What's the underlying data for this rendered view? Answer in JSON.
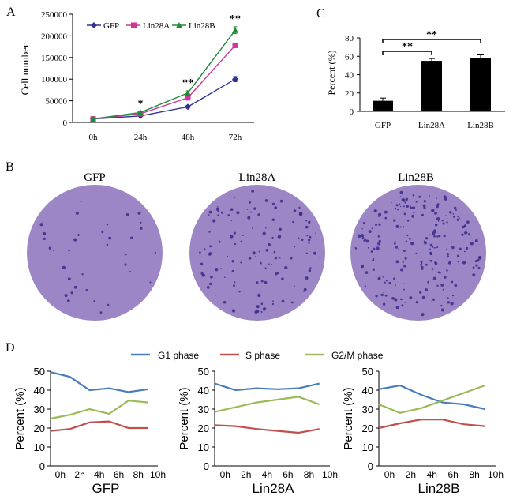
{
  "figure": {
    "panels": {
      "a": "A",
      "b": "B",
      "c": "C",
      "d": "D"
    },
    "colors": {
      "gfp": "#2e3192",
      "lin28a": "#d1359b",
      "lin28b": "#1e8a3a",
      "g1": "#4a7ebb",
      "s": "#c0504d",
      "g2m": "#9bbb59",
      "bar": "#000000",
      "plate": "#9c86c6",
      "plate_dot": "#3b2a8a"
    }
  },
  "chart_data": [
    {
      "id": "panelA",
      "type": "line",
      "title": "",
      "xlabel": "",
      "ylabel": "Cell number",
      "categories": [
        "0h",
        "24h",
        "48h",
        "72h"
      ],
      "ylim": [
        0,
        250000
      ],
      "yticks": [
        "0",
        "50000",
        "100000",
        "150000",
        "200000",
        "250000"
      ],
      "series": [
        {
          "name": "GFP",
          "values": [
            8000,
            15000,
            36000,
            100000
          ],
          "errors": [
            1000,
            2000,
            3000,
            6000
          ]
        },
        {
          "name": "Lin28A",
          "values": [
            8000,
            20000,
            57000,
            178000
          ],
          "errors": [
            1000,
            2000,
            4000,
            5000
          ]
        },
        {
          "name": "Lin28B",
          "values": [
            8000,
            23000,
            68000,
            213000
          ],
          "errors": [
            1000,
            2000,
            5000,
            8000
          ]
        }
      ],
      "annotations": [
        {
          "category": "24h",
          "text": "*"
        },
        {
          "category": "48h",
          "text": "**"
        },
        {
          "category": "72h",
          "text": "**"
        }
      ]
    },
    {
      "id": "panelC",
      "type": "bar",
      "ylabel": "Percent (%)",
      "categories": [
        "GFP",
        "Lin28A",
        "Lin28B"
      ],
      "values": [
        11.5,
        55,
        58.5
      ],
      "errors": [
        3,
        2.5,
        3
      ],
      "ylim": [
        0,
        80
      ],
      "yticks": [
        "0",
        "20",
        "40",
        "60",
        "80"
      ],
      "significance": [
        {
          "from": "GFP",
          "to": "Lin28A",
          "text": "**"
        },
        {
          "from": "GFP",
          "to": "Lin28B",
          "text": "**"
        }
      ]
    },
    {
      "id": "panelB",
      "type": "image",
      "labels": [
        "GFP",
        "Lin28A",
        "Lin28B"
      ]
    },
    {
      "id": "panelD",
      "type": "line",
      "legend": [
        "G1 phase",
        "S phase",
        "G2/M phase"
      ],
      "ylabel": "Percent (%)",
      "xticks": [
        "0h",
        "2h",
        "4h",
        "6h",
        "8h",
        "10h"
      ],
      "yticks": [
        "0",
        "10",
        "20",
        "30",
        "40",
        "50"
      ],
      "ylim": [
        0,
        50
      ],
      "xlim": [
        -1,
        10
      ],
      "x": [
        -1,
        1,
        3,
        5,
        7,
        9
      ],
      "charts": [
        {
          "label": "GFP",
          "series": [
            {
              "name": "G1 phase",
              "values": [
                49.5,
                47,
                40,
                41,
                39,
                40.5
              ]
            },
            {
              "name": "S phase",
              "values": [
                18.5,
                19.5,
                23,
                23.5,
                20,
                20
              ]
            },
            {
              "name": "G2/M phase",
              "values": [
                25,
                27,
                30,
                27.5,
                34.5,
                33.5
              ]
            }
          ]
        },
        {
          "label": "Lin28A",
          "series": [
            {
              "name": "G1 phase",
              "values": [
                43.5,
                40,
                41,
                40.5,
                41,
                43.5
              ]
            },
            {
              "name": "S phase",
              "values": [
                21.5,
                21,
                19.5,
                18.5,
                17.5,
                19.5
              ]
            },
            {
              "name": "G2/M phase",
              "values": [
                28.5,
                31,
                33.5,
                35,
                36.5,
                32.5
              ]
            }
          ]
        },
        {
          "label": "Lin28B",
          "series": [
            {
              "name": "G1 phase",
              "values": [
                40.5,
                42.5,
                37.5,
                33.5,
                32.5,
                30
              ]
            },
            {
              "name": "S phase",
              "values": [
                20,
                22.5,
                24.5,
                24.5,
                22,
                21
              ]
            },
            {
              "name": "G2/M phase",
              "values": [
                32.5,
                28,
                30.5,
                34.5,
                38.5,
                42.5
              ]
            }
          ]
        }
      ]
    }
  ]
}
